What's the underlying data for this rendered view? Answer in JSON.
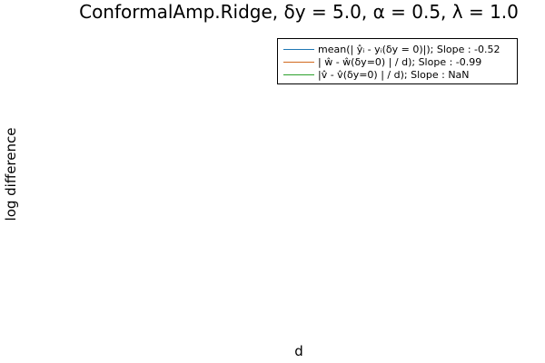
{
  "chart_data": {
    "type": "line",
    "title": "ConformalAmp.Ridge, δy = 5.0, α = 0.5, λ = 1.0",
    "xlabel": "d",
    "ylabel": "log difference",
    "grid": false,
    "legend_position": "top-right",
    "x": [],
    "series": [
      {
        "name": "mean(| ŷᵢ - yᵢ(δy = 0)|); Slope : -0.52",
        "color": "#1f77b4",
        "values": []
      },
      {
        "name": "| ŵ - ŵ(δy=0) | / d); Slope : -0.99",
        "color": "#d2691e",
        "values": []
      },
      {
        "name": "|v̂ - v̂(δy=0) | / d); Slope : NaN",
        "color": "#2ca02c",
        "values": []
      }
    ]
  }
}
